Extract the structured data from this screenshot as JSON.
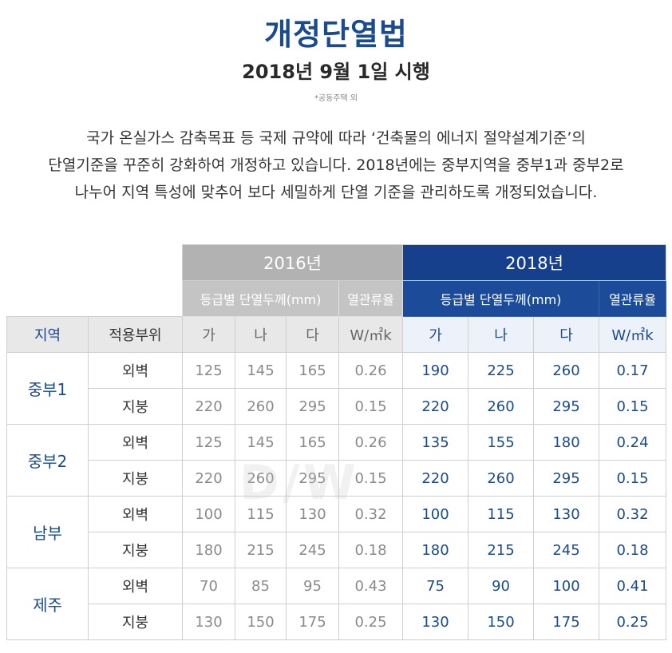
{
  "header": {
    "title": "개정단열법",
    "subtitle": "2018년 9월 1일 시행",
    "note": "*공동주택 외"
  },
  "description": [
    "국가 온실가스 감축목표 등 국제 규약에 따라 ‘건축물의 에너지 절약설계기준’의",
    "단열기준을 꾸준히 강화하여 개정하고 있습니다. 2018년에는 중부지역을 중부1과 중부2로",
    "나누어 지역 특성에 맞추어 보다 세밀하게 단열 기준을 관리하도록 개정되었습니다."
  ],
  "table": {
    "year_2016": "2016년",
    "year_2018": "2018년",
    "thickness_label": "등급별 단열두께(mm)",
    "transmittance_label": "열관류율",
    "col_region": "지역",
    "col_part": "적용부위",
    "grades": [
      "가",
      "나",
      "다"
    ],
    "unit": "W/㎡k",
    "rows": [
      {
        "region": "중부1",
        "part": "외벽",
        "v2016": [
          "125",
          "145",
          "165",
          "0.26"
        ],
        "v2018": [
          "190",
          "225",
          "260",
          "0.17"
        ]
      },
      {
        "region": "",
        "part": "지붕",
        "v2016": [
          "220",
          "260",
          "295",
          "0.15"
        ],
        "v2018": [
          "220",
          "260",
          "295",
          "0.15"
        ]
      },
      {
        "region": "중부2",
        "part": "외벽",
        "v2016": [
          "125",
          "145",
          "165",
          "0.26"
        ],
        "v2018": [
          "135",
          "155",
          "180",
          "0.24"
        ]
      },
      {
        "region": "",
        "part": "지붕",
        "v2016": [
          "220",
          "260",
          "295",
          "0.15"
        ],
        "v2018": [
          "220",
          "260",
          "295",
          "0.15"
        ]
      },
      {
        "region": "남부",
        "part": "외벽",
        "v2016": [
          "100",
          "115",
          "130",
          "0.32"
        ],
        "v2018": [
          "100",
          "115",
          "130",
          "0.32"
        ]
      },
      {
        "region": "",
        "part": "지붕",
        "v2016": [
          "180",
          "215",
          "245",
          "0.18"
        ],
        "v2018": [
          "180",
          "215",
          "245",
          "0.18"
        ]
      },
      {
        "region": "제주",
        "part": "외벽",
        "v2016": [
          "70",
          "85",
          "95",
          "0.43"
        ],
        "v2018": [
          "75",
          "90",
          "100",
          "0.41"
        ]
      },
      {
        "region": "",
        "part": "지붕",
        "v2016": [
          "130",
          "150",
          "175",
          "0.25"
        ],
        "v2018": [
          "130",
          "150",
          "175",
          "0.25"
        ]
      }
    ]
  }
}
